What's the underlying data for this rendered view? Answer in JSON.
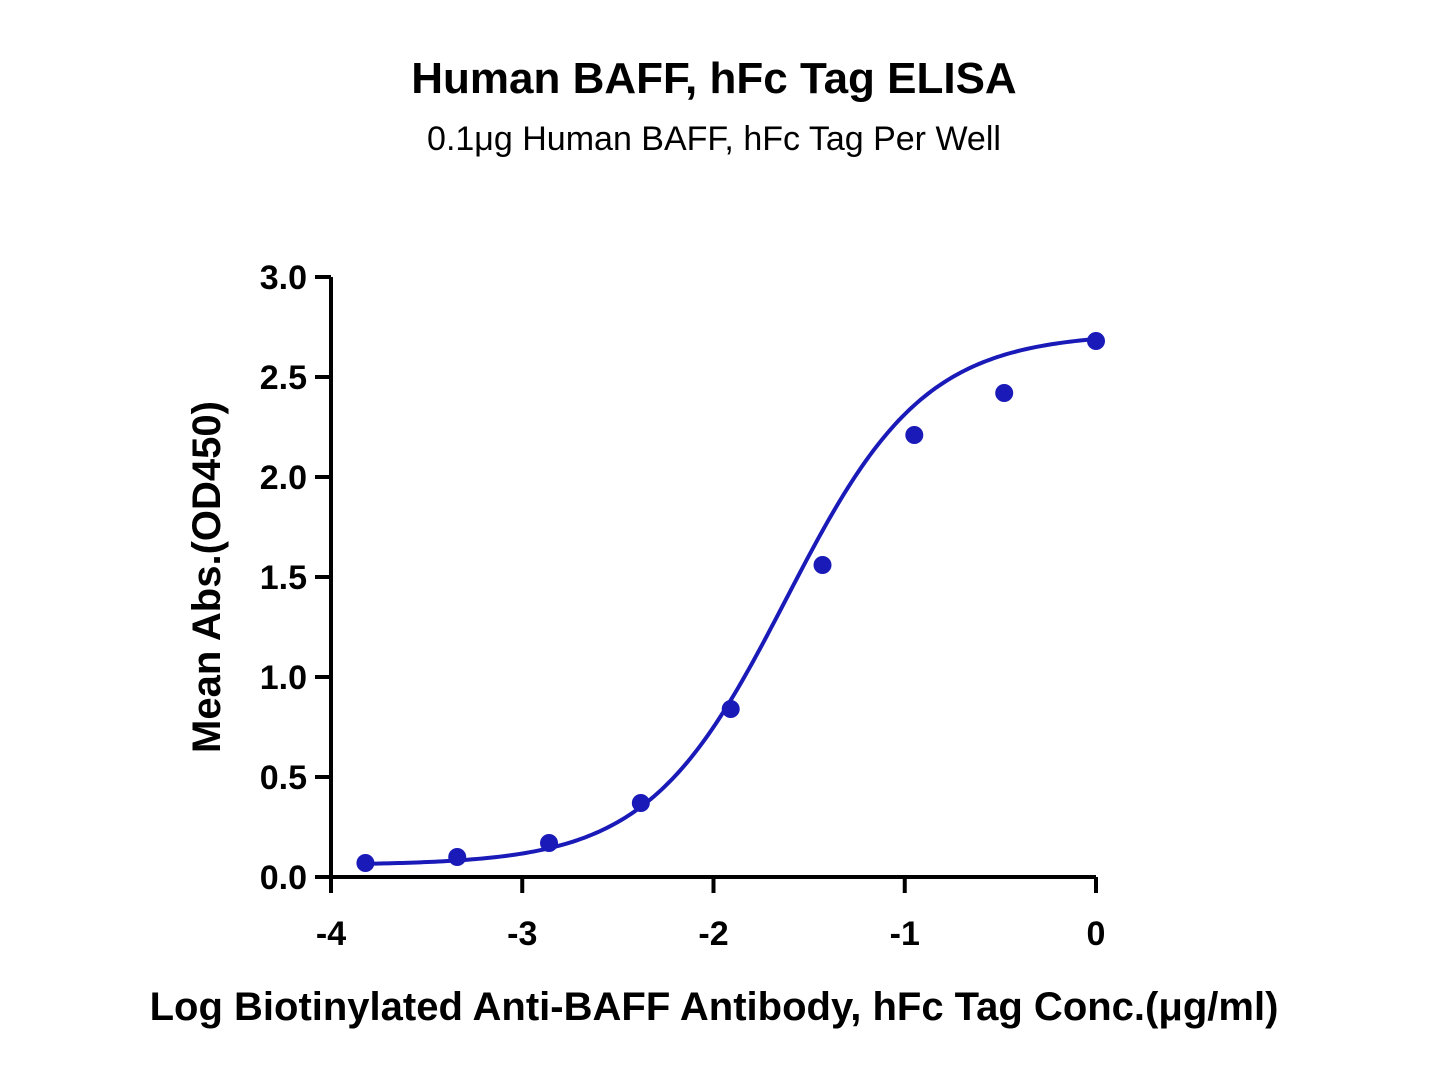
{
  "chart_data": {
    "type": "scatter",
    "title": "Human BAFF, hFc Tag ELISA",
    "subtitle": "0.1μg Human BAFF, hFc Tag Per Well",
    "xlabel": "Log Biotinylated Anti-BAFF Antibody, hFc Tag Conc.(μg/ml)",
    "ylabel": "Mean Abs.(OD450)",
    "xlim": [
      -4,
      0
    ],
    "ylim": [
      0,
      3.0
    ],
    "x_ticks": [
      -4,
      -3,
      -2,
      -1,
      0
    ],
    "x_tick_labels": [
      "-4",
      "-3",
      "-2",
      "-1",
      "0"
    ],
    "y_ticks": [
      0,
      0.5,
      1.0,
      1.5,
      2.0,
      2.5,
      3.0
    ],
    "y_tick_labels": [
      "0.0",
      "0.5",
      "1.0",
      "1.5",
      "2.0",
      "2.5",
      "3.0"
    ],
    "grid": false,
    "legend": "none",
    "color": "#1a1ab8",
    "series": [
      {
        "type": "scatter",
        "x": [
          -3.82,
          -3.34,
          -2.86,
          -2.38,
          -1.91,
          -1.43,
          -0.95,
          -0.48,
          0.0
        ],
        "y": [
          0.07,
          0.1,
          0.17,
          0.37,
          0.84,
          1.56,
          2.21,
          2.42,
          2.68
        ]
      },
      {
        "type": "line",
        "curve": "4PL",
        "x_range": [
          -3.82,
          0.0
        ],
        "bottom": 0.06,
        "top": 2.72,
        "log_ec50": -1.62,
        "hill": 1.2
      }
    ]
  }
}
